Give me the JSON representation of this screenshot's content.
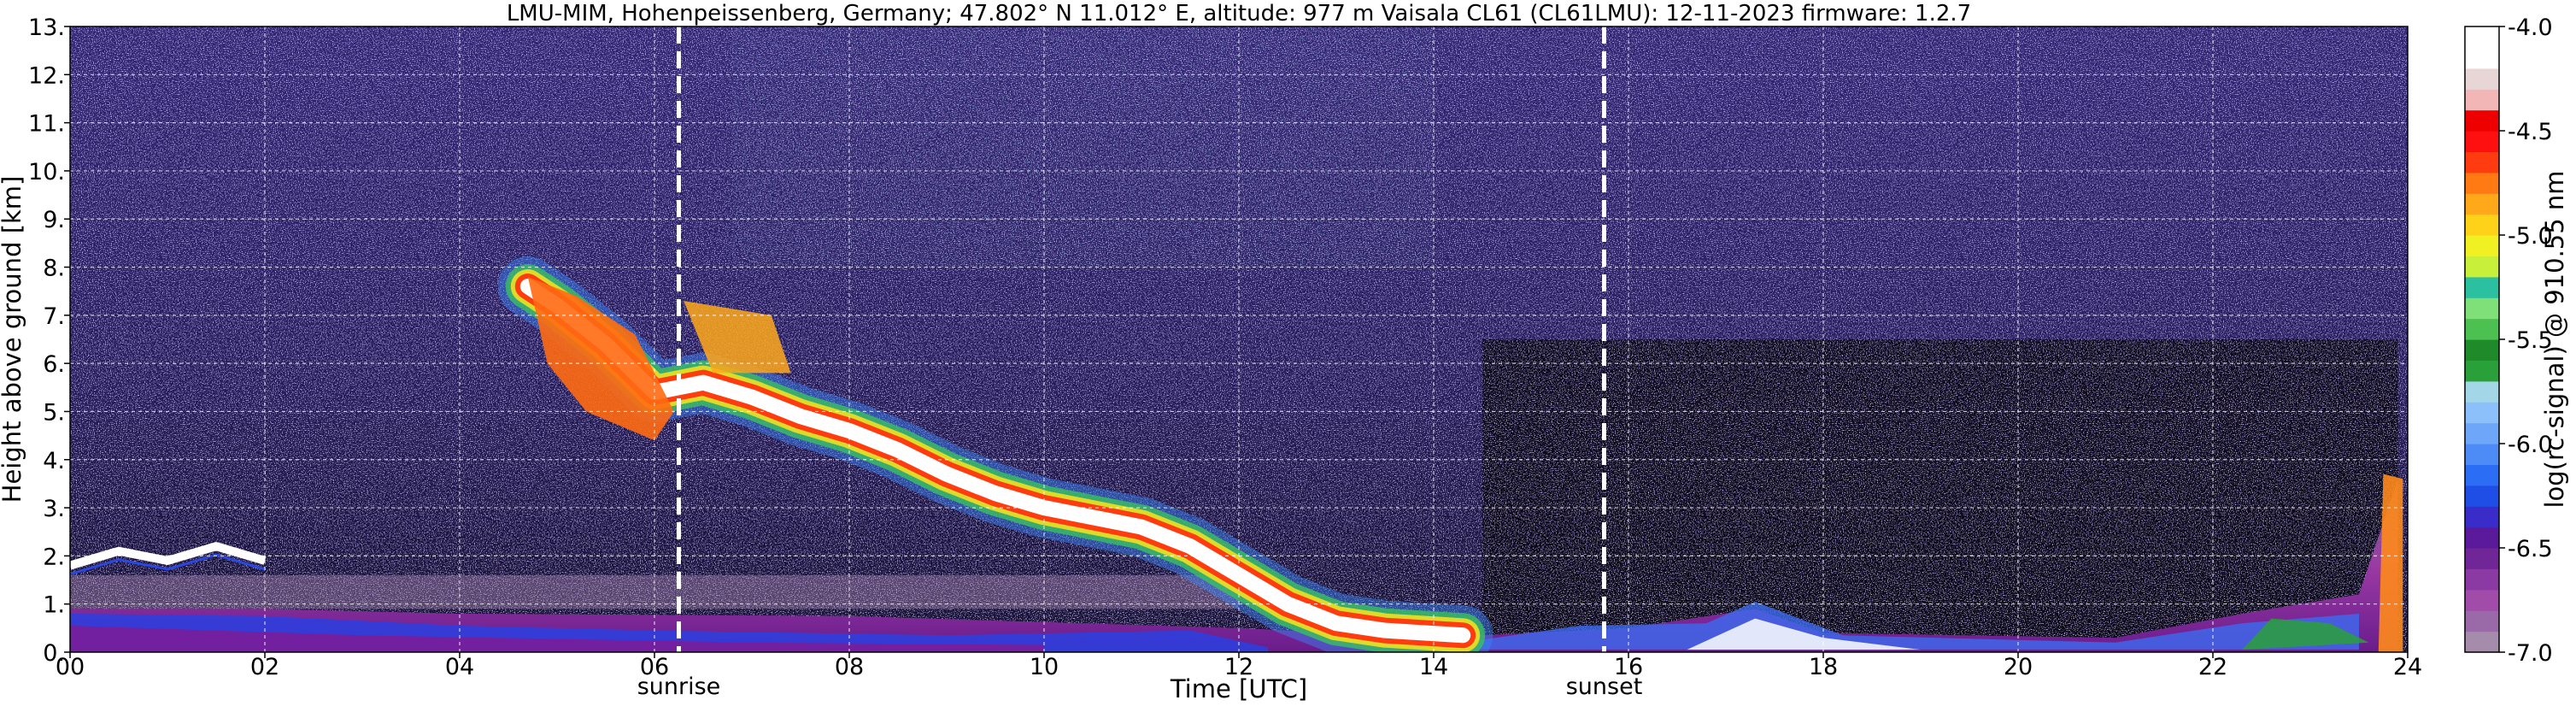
{
  "chart_data": {
    "type": "heatmap",
    "title": "LMU-MIM, Hohenpeissenberg, Germany; 47.802° N 11.012° E, altitude: 977 m    Vaisala CL61 (CL61LMU): 12-11-2023    firmware: 1.2.7",
    "xlabel": "Time [UTC]",
    "ylabel": "Height above ground [km]",
    "xlim": [
      0,
      24
    ],
    "ylim": [
      0,
      13
    ],
    "x_ticks": [
      "00",
      "02",
      "04",
      "06",
      "08",
      "10",
      "12",
      "14",
      "16",
      "18",
      "20",
      "22",
      "24"
    ],
    "y_ticks": [
      "0.",
      "1.",
      "2.",
      "3.",
      "4.",
      "5.",
      "6.",
      "7.",
      "8.",
      "9.",
      "10.",
      "11.",
      "12.",
      "13."
    ],
    "grid": true,
    "markers": [
      {
        "label": "sunrise",
        "x": 6.25
      },
      {
        "label": "sunset",
        "x": 15.75
      }
    ],
    "colorbar": {
      "label": "log(rc-signal) @ 910.55 nm",
      "range": [
        -7.0,
        -4.0
      ],
      "ticks": [
        "-4.0",
        "-4.5",
        "-5.0",
        "-5.5",
        "-6.0",
        "-6.5",
        "-7.0"
      ],
      "tick_values": [
        -4.0,
        -4.5,
        -5.0,
        -5.5,
        -6.0,
        -6.5,
        -7.0
      ],
      "colors": [
        "#a58cab",
        "#9a6aa8",
        "#a04ca8",
        "#8a3aa2",
        "#702696",
        "#5b1a9c",
        "#3a2cc8",
        "#1f4ee6",
        "#2b6ef5",
        "#4d8cf7",
        "#6ea6fa",
        "#8cc0fb",
        "#a3d7e8",
        "#2aa03a",
        "#1f8a2a",
        "#4cc050",
        "#7fe07a",
        "#2ac0a0",
        "#c8ef3a",
        "#f0f022",
        "#ffd21a",
        "#ffa81a",
        "#ff7a12",
        "#ff3c10",
        "#ff1010",
        "#ee0000",
        "#f2b6b6",
        "#e8d6d6",
        "#ffffff",
        "#ffffff"
      ]
    },
    "layers": [
      {
        "name": "cloud",
        "time_height_km": [
          [
            4.7,
            7.6
          ],
          [
            5.0,
            7.2
          ],
          [
            5.5,
            6.4
          ],
          [
            6.0,
            5.4
          ],
          [
            6.5,
            5.6
          ],
          [
            7.0,
            5.3
          ],
          [
            7.5,
            4.9
          ],
          [
            8.0,
            4.6
          ],
          [
            8.5,
            4.2
          ],
          [
            9.0,
            3.7
          ],
          [
            9.5,
            3.3
          ],
          [
            10.0,
            3.0
          ],
          [
            10.5,
            2.8
          ],
          [
            11.0,
            2.6
          ],
          [
            11.5,
            2.2
          ],
          [
            12.0,
            1.6
          ],
          [
            12.5,
            1.0
          ],
          [
            13.0,
            0.6
          ],
          [
            13.5,
            0.45
          ],
          [
            14.3,
            0.35
          ]
        ]
      },
      {
        "name": "boundary-layer",
        "time_height_km": [
          [
            0,
            0.9
          ],
          [
            2,
            0.9
          ],
          [
            4,
            0.8
          ],
          [
            8,
            0.75
          ],
          [
            12,
            0.5
          ],
          [
            14,
            0.3
          ],
          [
            16,
            0.5
          ],
          [
            17.3,
            0.9
          ],
          [
            18,
            0.4
          ],
          [
            21,
            0.3
          ],
          [
            22.3,
            0.8
          ],
          [
            23.5,
            1.2
          ],
          [
            23.9,
            3.6
          ]
        ]
      },
      {
        "name": "low-cloud-early",
        "time_height_km": [
          [
            0,
            1.8
          ],
          [
            0.5,
            2.1
          ],
          [
            1.0,
            1.9
          ],
          [
            1.5,
            2.2
          ],
          [
            2.0,
            1.9
          ]
        ]
      }
    ]
  }
}
